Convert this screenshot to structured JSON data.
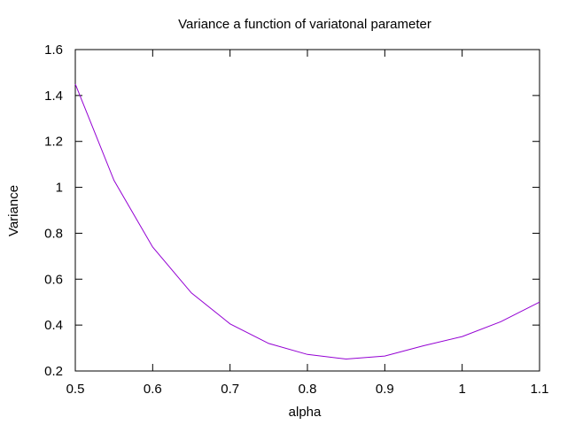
{
  "chart_data": {
    "type": "line",
    "title": "Variance a function of variatonal parameter",
    "xlabel": "alpha",
    "ylabel": "Variance",
    "xlim": [
      0.5,
      1.1
    ],
    "ylim": [
      0.2,
      1.6
    ],
    "xticks": [
      0.5,
      0.6,
      0.7,
      0.8,
      0.9,
      1.0,
      1.1
    ],
    "xtick_labels": [
      "0.5",
      "0.6",
      "0.7",
      "0.8",
      "0.9",
      "1",
      "1.1"
    ],
    "yticks": [
      0.2,
      0.4,
      0.6,
      0.8,
      1.0,
      1.2,
      1.4,
      1.6
    ],
    "ytick_labels": [
      "0.2",
      "0.4",
      "0.6",
      "0.8",
      "1",
      "1.2",
      "1.4",
      "1.6"
    ],
    "grid": false,
    "legend": "none",
    "series": [
      {
        "color": "#9400d3",
        "x": [
          0.5,
          0.55,
          0.6,
          0.65,
          0.7,
          0.75,
          0.8,
          0.85,
          0.9,
          0.95,
          1.0,
          1.05,
          1.1
        ],
        "y": [
          1.45,
          1.03,
          0.74,
          0.54,
          0.405,
          0.32,
          0.272,
          0.252,
          0.265,
          0.31,
          0.35,
          0.415,
          0.5
        ]
      }
    ]
  }
}
